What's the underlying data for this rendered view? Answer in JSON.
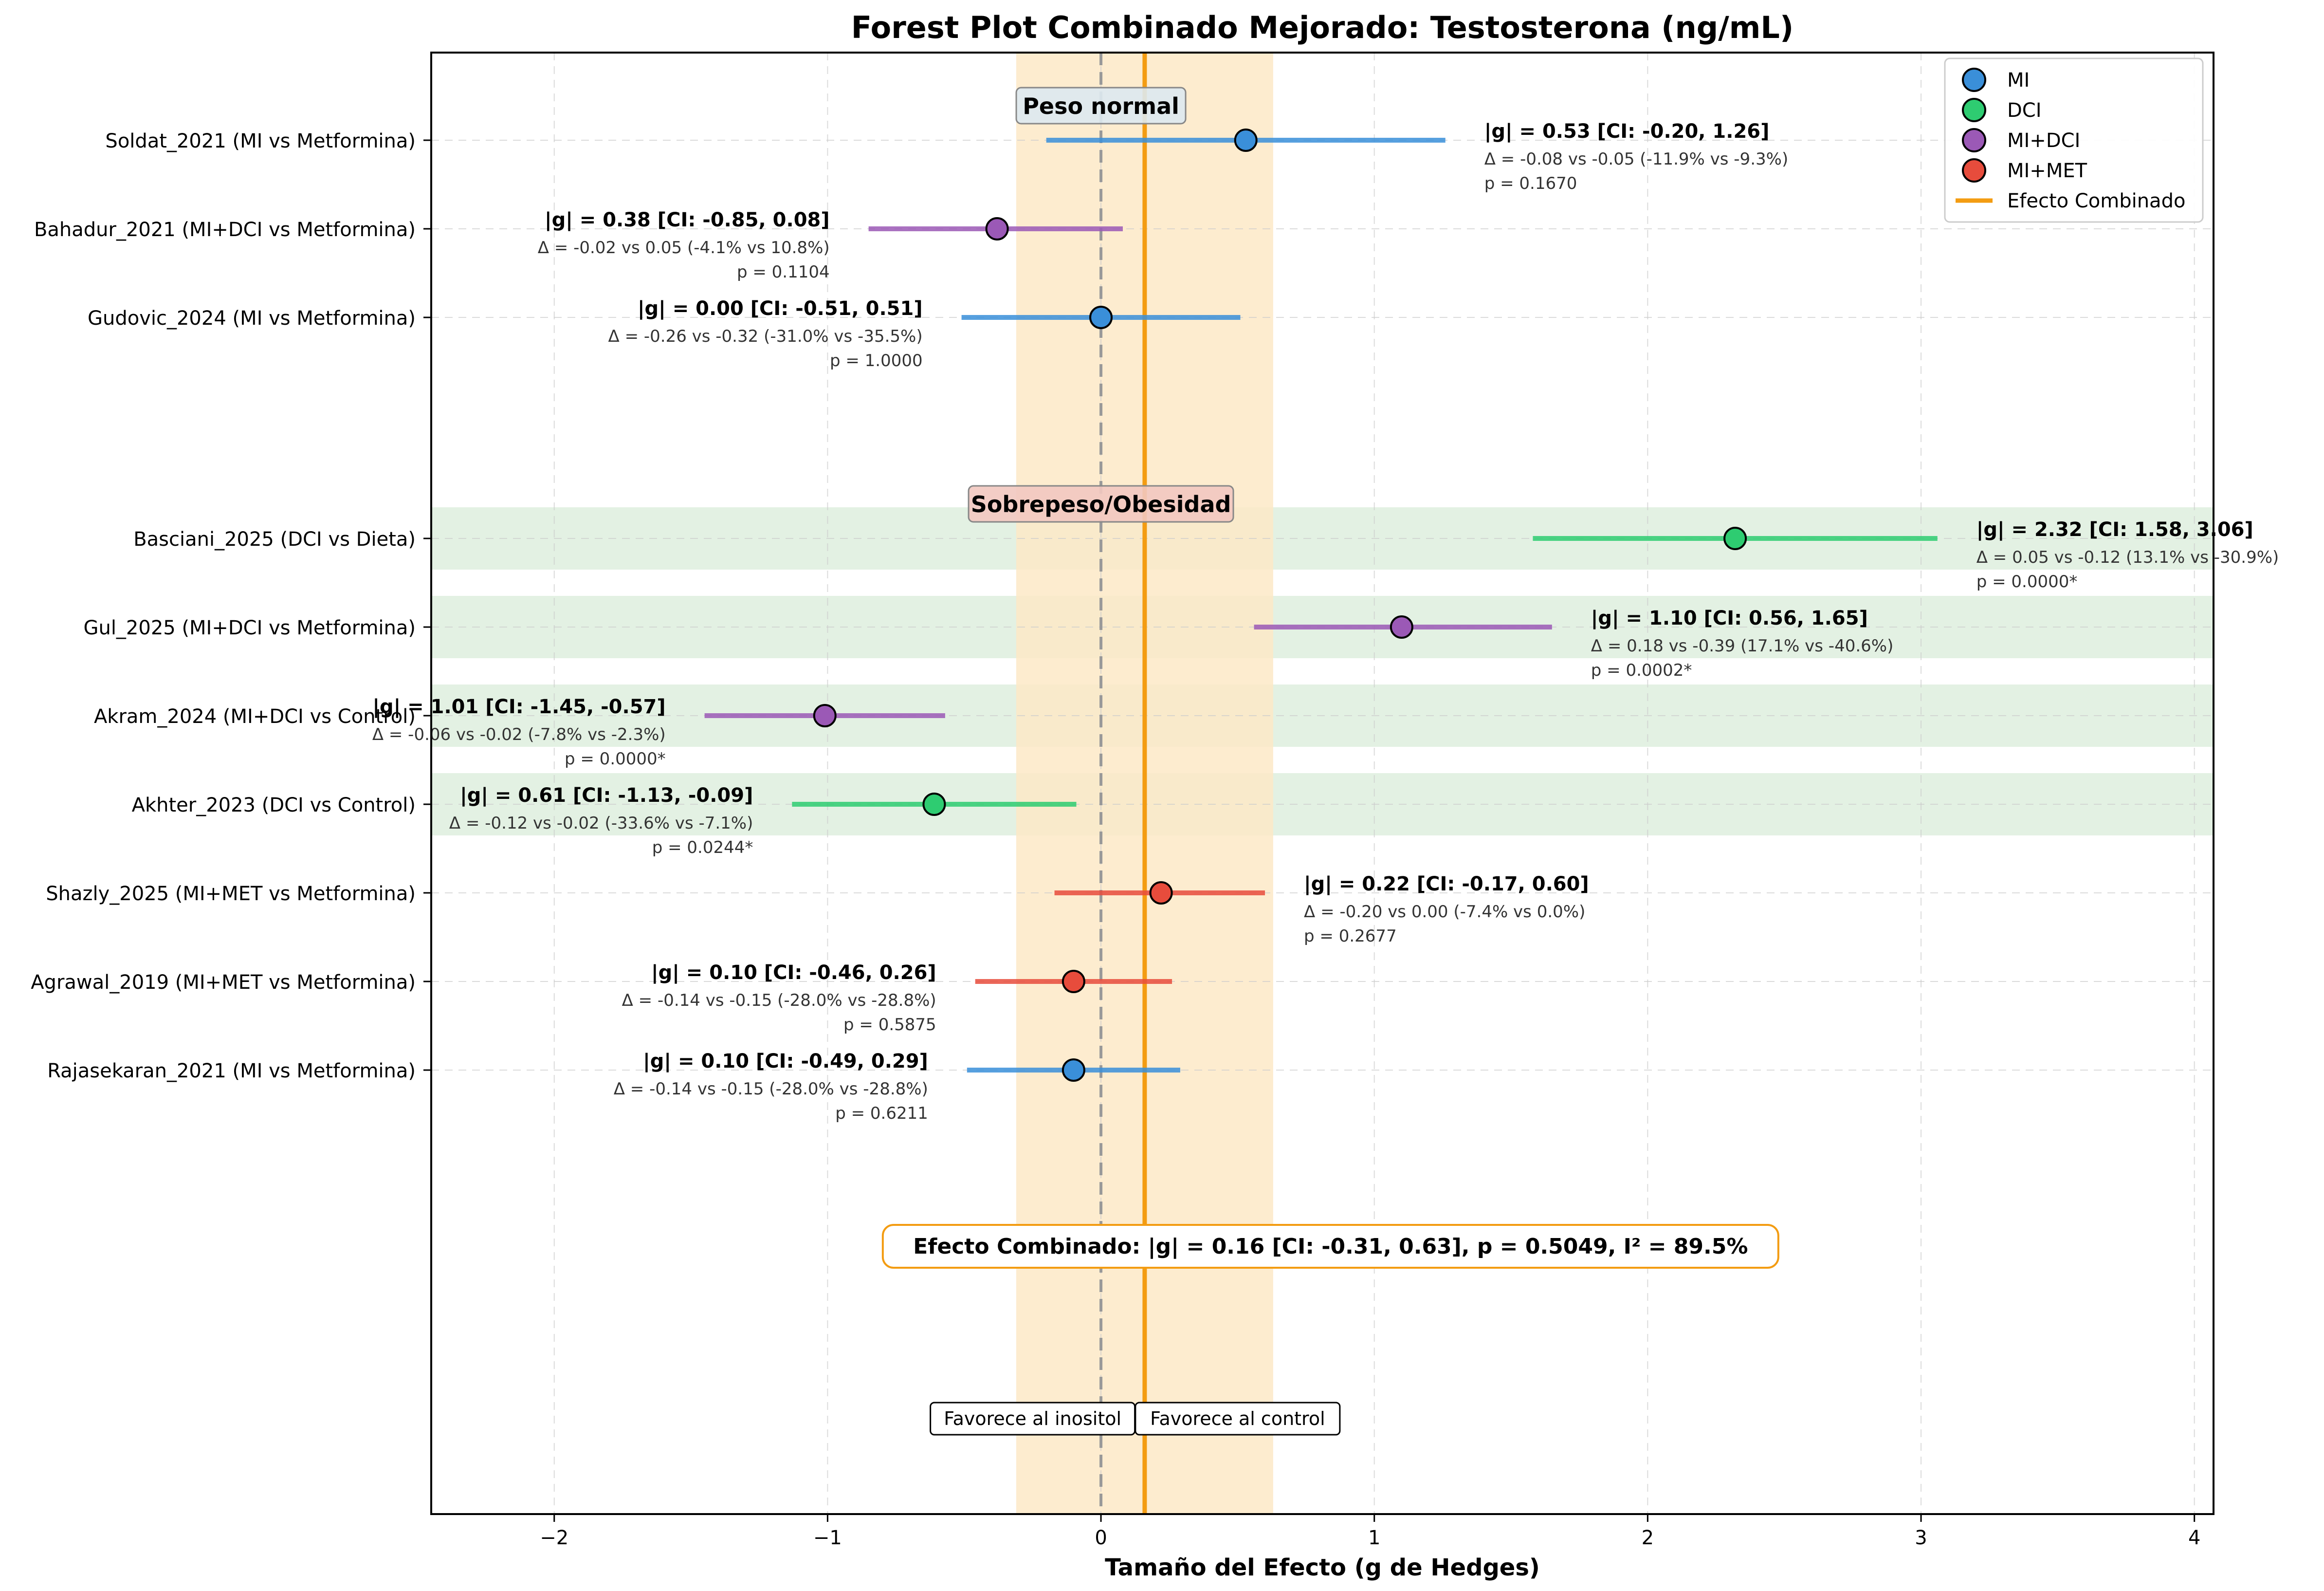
{
  "chart_data": {
    "type": "forest",
    "title": "Forest Plot Combinado Mejorado: Testosterona (ng/mL)",
    "xlabel": "Tamaño del Efecto (g de Hedges)",
    "ylabel": "",
    "xlim": [
      -2.45,
      4.07
    ],
    "xticks": [
      -2,
      -1,
      0,
      1,
      2,
      3,
      4
    ],
    "xtick_labels": [
      "−2",
      "−1",
      "0",
      "1",
      "2",
      "3",
      "4"
    ],
    "grid": true,
    "legend_position": "top-right",
    "legend": [
      {
        "label": "MI",
        "color": "#3a8fd9",
        "kind": "marker"
      },
      {
        "label": "DCI",
        "color": "#2ecc71",
        "kind": "marker"
      },
      {
        "label": "MI+DCI",
        "color": "#9b59b6",
        "kind": "marker"
      },
      {
        "label": "MI+MET",
        "color": "#e74c3c",
        "kind": "marker"
      },
      {
        "label": "Efecto Combinado",
        "color": "#f39c12",
        "kind": "line"
      }
    ],
    "groups": [
      {
        "label": "Peso normal"
      },
      {
        "label": "Sobrepeso/Obesidad"
      }
    ],
    "studies": [
      {
        "label": "Soldat_2021 (MI vs Metformina)",
        "group": "Peso normal",
        "treatment": "MI",
        "g": 0.53,
        "ci_low": -0.2,
        "ci_high": 1.26,
        "highlight": false,
        "ann_main": "|g| = 0.53 [CI: -0.20, 1.26]",
        "ann_delta": "Δ = -0.08 vs -0.05 (-11.9% vs -9.3%)",
        "ann_p": "p = 0.1670",
        "ann_side": "right"
      },
      {
        "label": "Bahadur_2021 (MI+DCI vs Metformina)",
        "group": "Peso normal",
        "treatment": "MI+DCI",
        "g": -0.38,
        "ci_low": -0.85,
        "ci_high": 0.08,
        "highlight": false,
        "ann_main": "|g| = 0.38 [CI: -0.85, 0.08]",
        "ann_delta": "Δ = -0.02 vs 0.05 (-4.1% vs 10.8%)",
        "ann_p": "p = 0.1104",
        "ann_side": "left"
      },
      {
        "label": "Gudovic_2024 (MI vs Metformina)",
        "group": "Peso normal",
        "treatment": "MI",
        "g": 0.0,
        "ci_low": -0.51,
        "ci_high": 0.51,
        "highlight": false,
        "ann_main": "|g| = 0.00 [CI: -0.51, 0.51]",
        "ann_delta": "Δ = -0.26 vs -0.32 (-31.0% vs -35.5%)",
        "ann_p": "p = 1.0000",
        "ann_side": "left"
      },
      {
        "label": "Basciani_2025 (DCI vs Dieta)",
        "group": "Sobrepeso/Obesidad",
        "treatment": "DCI",
        "g": 2.32,
        "ci_low": 1.58,
        "ci_high": 3.06,
        "highlight": true,
        "ann_main": "|g| = 2.32 [CI: 1.58, 3.06]",
        "ann_delta": "Δ = 0.05 vs -0.12 (13.1% vs -30.9%)",
        "ann_p": "p = 0.0000*",
        "ann_side": "right"
      },
      {
        "label": "Gul_2025 (MI+DCI vs Metformina)",
        "group": "Sobrepeso/Obesidad",
        "treatment": "MI+DCI",
        "g": 1.1,
        "ci_low": 0.56,
        "ci_high": 1.65,
        "highlight": true,
        "ann_main": "|g| = 1.10 [CI: 0.56, 1.65]",
        "ann_delta": "Δ = 0.18 vs -0.39 (17.1% vs -40.6%)",
        "ann_p": "p = 0.0002*",
        "ann_side": "right"
      },
      {
        "label": "Akram_2024 (MI+DCI vs Control)",
        "group": "Sobrepeso/Obesidad",
        "treatment": "MI+DCI",
        "g": -1.01,
        "ci_low": -1.45,
        "ci_high": -0.57,
        "highlight": true,
        "ann_main": "|g| = 1.01 [CI: -1.45, -0.57]",
        "ann_delta": "Δ = -0.06 vs -0.02 (-7.8% vs -2.3%)",
        "ann_p": "p = 0.0000*",
        "ann_side": "left"
      },
      {
        "label": "Akhter_2023 (DCI vs Control)",
        "group": "Sobrepeso/Obesidad",
        "treatment": "DCI",
        "g": -0.61,
        "ci_low": -1.13,
        "ci_high": -0.09,
        "highlight": true,
        "ann_main": "|g| = 0.61 [CI: -1.13, -0.09]",
        "ann_delta": "Δ = -0.12 vs -0.02 (-33.6% vs -7.1%)",
        "ann_p": "p = 0.0244*",
        "ann_side": "left"
      },
      {
        "label": "Shazly_2025 (MI+MET vs Metformina)",
        "group": "Sobrepeso/Obesidad",
        "treatment": "MI+MET",
        "g": 0.22,
        "ci_low": -0.17,
        "ci_high": 0.6,
        "highlight": false,
        "ann_main": "|g| = 0.22 [CI: -0.17, 0.60]",
        "ann_delta": "Δ = -0.20 vs 0.00 (-7.4% vs 0.0%)",
        "ann_p": "p = 0.2677",
        "ann_side": "right"
      },
      {
        "label": "Agrawal_2019 (MI+MET vs Metformina)",
        "group": "Sobrepeso/Obesidad",
        "treatment": "MI+MET",
        "g": -0.1,
        "ci_low": -0.46,
        "ci_high": 0.26,
        "highlight": false,
        "ann_main": "|g| = 0.10 [CI: -0.46, 0.26]",
        "ann_delta": "Δ = -0.14 vs -0.15 (-28.0% vs -28.8%)",
        "ann_p": "p = 0.5875",
        "ann_side": "left"
      },
      {
        "label": "Rajasekaran_2021 (MI vs Metformina)",
        "group": "Sobrepeso/Obesidad",
        "treatment": "MI",
        "g": -0.1,
        "ci_low": -0.49,
        "ci_high": 0.29,
        "highlight": false,
        "ann_main": "|g| = 0.10 [CI: -0.49, 0.29]",
        "ann_delta": "Δ = -0.14 vs -0.15 (-28.0% vs -28.8%)",
        "ann_p": "p = 0.6211",
        "ann_side": "left"
      }
    ],
    "pooled": {
      "g": 0.16,
      "ci_low": -0.31,
      "ci_high": 0.63,
      "p": 0.5049,
      "i2": 89.5,
      "label": "Efecto Combinado: |g| = 0.16 [CI: -0.31, 0.63], p = 0.5049, I² = 89.5%"
    },
    "direction_labels": {
      "left": "Favorece al inositol",
      "right": "Favorece al control"
    },
    "colors": {
      "MI": "#3a8fd9",
      "DCI": "#2ecc71",
      "MI+DCI": "#9b59b6",
      "MI+MET": "#e74c3c",
      "pooled": "#f39c12",
      "pooled_band": "#fde9c7",
      "highlight_band": "#d9ecd9"
    }
  }
}
